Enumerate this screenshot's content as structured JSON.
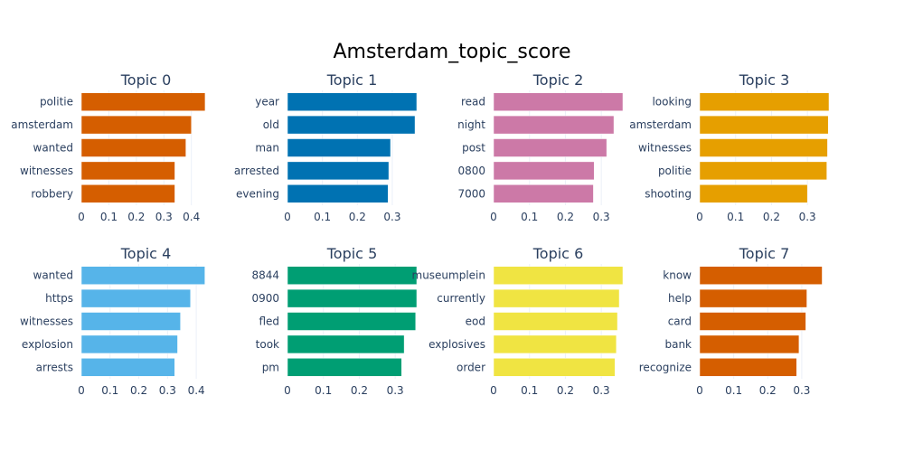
{
  "title": "Amsterdam_topic_score",
  "chart_data": [
    {
      "type": "bar",
      "orientation": "horizontal",
      "title": "Topic 0",
      "color": "#D55E00",
      "categories": [
        "politie",
        "amsterdam",
        "wanted",
        "witnesses",
        "robbery"
      ],
      "values": [
        0.45,
        0.4,
        0.38,
        0.34,
        0.34
      ],
      "xlim": [
        0,
        0.47
      ],
      "xticks": [
        "0",
        "0.1",
        "0.2",
        "0.3",
        "0.4"
      ],
      "xtick_values": [
        0,
        0.1,
        0.2,
        0.3,
        0.4
      ]
    },
    {
      "type": "bar",
      "orientation": "horizontal",
      "title": "Topic 1",
      "color": "#0072B2",
      "categories": [
        "year",
        "old",
        "man",
        "arrested",
        "evening"
      ],
      "values": [
        0.37,
        0.365,
        0.295,
        0.29,
        0.288
      ],
      "xlim": [
        0,
        0.37
      ],
      "xticks": [
        "0",
        "0.1",
        "0.2",
        "0.3"
      ],
      "xtick_values": [
        0,
        0.1,
        0.2,
        0.3
      ]
    },
    {
      "type": "bar",
      "orientation": "horizontal",
      "title": "Topic 2",
      "color": "#CC79A7",
      "categories": [
        "read",
        "night",
        "post",
        "0800",
        "7000"
      ],
      "values": [
        0.36,
        0.335,
        0.315,
        0.28,
        0.278
      ],
      "xlim": [
        0,
        0.36
      ],
      "xticks": [
        "0",
        "0.1",
        "0.2",
        "0.3"
      ],
      "xtick_values": [
        0,
        0.1,
        0.2,
        0.3
      ]
    },
    {
      "type": "bar",
      "orientation": "horizontal",
      "title": "Topic 3",
      "color": "#E69F00",
      "categories": [
        "looking",
        "amsterdam",
        "witnesses",
        "politie",
        "shooting"
      ],
      "values": [
        0.36,
        0.358,
        0.356,
        0.354,
        0.3
      ],
      "xlim": [
        0,
        0.36
      ],
      "xticks": [
        "0",
        "0.1",
        "0.2",
        "0.3"
      ],
      "xtick_values": [
        0,
        0.1,
        0.2,
        0.3
      ]
    },
    {
      "type": "bar",
      "orientation": "horizontal",
      "title": "Topic 4",
      "color": "#56B4E9",
      "categories": [
        "wanted",
        "https",
        "witnesses",
        "explosion",
        "arrests"
      ],
      "values": [
        0.43,
        0.38,
        0.345,
        0.335,
        0.325
      ],
      "xlim": [
        0,
        0.45
      ],
      "xticks": [
        "0",
        "0.1",
        "0.2",
        "0.3",
        "0.4"
      ],
      "xtick_values": [
        0,
        0.1,
        0.2,
        0.3,
        0.4
      ]
    },
    {
      "type": "bar",
      "orientation": "horizontal",
      "title": "Topic 5",
      "color": "#009E73",
      "categories": [
        "8844",
        "0900",
        "fled",
        "took",
        "pm"
      ],
      "values": [
        0.36,
        0.36,
        0.357,
        0.325,
        0.318
      ],
      "xlim": [
        0,
        0.36
      ],
      "xticks": [
        "0",
        "0.1",
        "0.2",
        "0.3"
      ],
      "xtick_values": [
        0,
        0.1,
        0.2,
        0.3
      ]
    },
    {
      "type": "bar",
      "orientation": "horizontal",
      "title": "Topic 6",
      "color": "#F0E442",
      "categories": [
        "museumplein",
        "currently",
        "eod",
        "explosives",
        "order"
      ],
      "values": [
        0.36,
        0.35,
        0.345,
        0.342,
        0.338
      ],
      "xlim": [
        0,
        0.36
      ],
      "xticks": [
        "0",
        "0.1",
        "0.2",
        "0.3"
      ],
      "xtick_values": [
        0,
        0.1,
        0.2,
        0.3
      ]
    },
    {
      "type": "bar",
      "orientation": "horizontal",
      "title": "Topic 7",
      "color": "#D55E00",
      "categories": [
        "know",
        "help",
        "card",
        "bank",
        "recognize"
      ],
      "values": [
        0.36,
        0.315,
        0.312,
        0.292,
        0.285
      ],
      "xlim": [
        0,
        0.38
      ],
      "xticks": [
        "0",
        "0.1",
        "0.2",
        "0.3"
      ],
      "xtick_values": [
        0,
        0.1,
        0.2,
        0.3
      ]
    }
  ]
}
